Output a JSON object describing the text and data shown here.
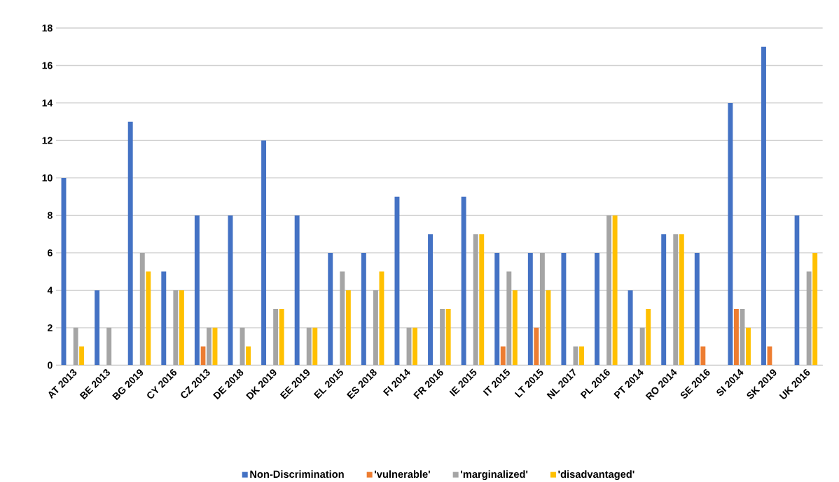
{
  "chart_data": {
    "type": "bar",
    "categories": [
      "AT 2013",
      "BE 2013",
      "BG 2019",
      "CY 2016",
      "CZ 2013",
      "DE 2018",
      "DK 2019",
      "EE 2019",
      "EL 2015",
      "ES 2018",
      "FI 2014",
      "FR 2016",
      "IE 2015",
      "IT 2015",
      "LT 2015",
      "NL 2017",
      "PL 2016",
      "PT 2014",
      "RO 2014",
      "SE 2016",
      "SI 2014",
      "SK 2019",
      "UK 2016"
    ],
    "series": [
      {
        "name": "Non-Discrimination",
        "color": "#4472c4",
        "values": [
          10,
          4,
          13,
          5,
          8,
          8,
          12,
          8,
          6,
          6,
          9,
          7,
          9,
          6,
          6,
          6,
          6,
          4,
          7,
          6,
          14,
          17,
          8
        ]
      },
      {
        "name": "'vulnerable'",
        "color": "#ed7d31",
        "values": [
          null,
          null,
          null,
          null,
          1,
          null,
          null,
          null,
          null,
          null,
          null,
          null,
          null,
          1,
          2,
          null,
          null,
          null,
          null,
          1,
          3,
          1,
          null
        ]
      },
      {
        "name": "'marginalized'",
        "color": "#a5a5a5",
        "values": [
          2,
          2,
          6,
          4,
          2,
          2,
          3,
          2,
          5,
          4,
          2,
          3,
          7,
          5,
          6,
          1,
          8,
          2,
          7,
          null,
          3,
          null,
          5
        ]
      },
      {
        "name": "'disadvantaged'",
        "color": "#ffc000",
        "values": [
          1,
          null,
          5,
          4,
          2,
          1,
          3,
          2,
          4,
          5,
          2,
          3,
          7,
          4,
          4,
          1,
          8,
          3,
          7,
          null,
          2,
          null,
          6
        ]
      }
    ],
    "ylim": [
      0,
      18
    ],
    "yticks": [
      0,
      2,
      4,
      6,
      8,
      10,
      12,
      14,
      16,
      18
    ],
    "grid": "y",
    "legend": "bottom"
  }
}
